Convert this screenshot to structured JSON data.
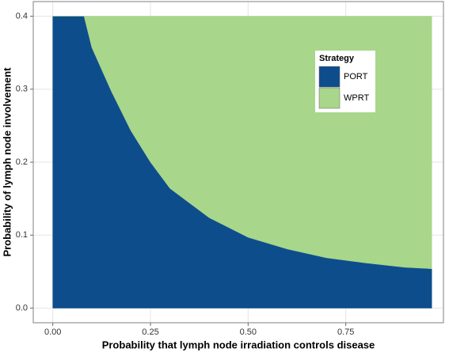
{
  "chart_data": {
    "type": "area",
    "stacked": true,
    "x_label": "Probability that lymph node irradiation controls disease",
    "y_label": "Probability of lymph node involvement",
    "legend_title": "Strategy",
    "legend": "top-right",
    "grid": true,
    "x": [
      0.0,
      0.05,
      0.08,
      0.1,
      0.15,
      0.2,
      0.25,
      0.3,
      0.4,
      0.5,
      0.6,
      0.7,
      0.8,
      0.9,
      0.97
    ],
    "series": [
      {
        "name": "PORT",
        "color": "#0e4d8c",
        "values": [
          0.4,
          0.4,
          0.4,
          0.357,
          0.297,
          0.243,
          0.2,
          0.164,
          0.124,
          0.097,
          0.081,
          0.069,
          0.062,
          0.056,
          0.054
        ]
      },
      {
        "name": "WPRT",
        "color": "#a8d68a",
        "values": [
          0,
          0,
          0,
          0.043,
          0.103,
          0.157,
          0.2,
          0.236,
          0.276,
          0.303,
          0.319,
          0.331,
          0.338,
          0.344,
          0.346
        ]
      }
    ],
    "xlim": [
      -0.05,
      1.0
    ],
    "xticks": [
      {
        "value": 0,
        "label": "0.00"
      },
      0.25,
      {
        "value": 0.5,
        "label": "0.50"
      },
      0.75
    ],
    "ylim": [
      -0.02,
      0.42
    ],
    "yticks": [
      {
        "value": 0,
        "label": "0.0"
      },
      0.1,
      0.2,
      0.3,
      0.4
    ]
  }
}
